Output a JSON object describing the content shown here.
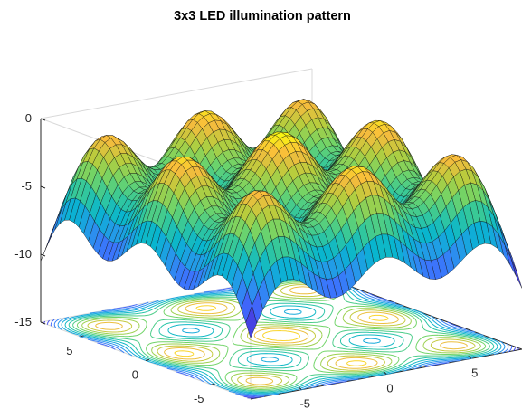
{
  "chart_data": {
    "type": "surface",
    "title": "3x3 LED illumination pattern",
    "xlabel": "",
    "ylabel": "",
    "zlabel": "",
    "x_range": [
      -8,
      8
    ],
    "y_range": [
      -8,
      8
    ],
    "zlim": [
      -15,
      0
    ],
    "contour_plane_z": -15,
    "grid": "off",
    "colormap": "parula",
    "source_grid_x": [
      -6,
      0,
      6
    ],
    "source_grid_y": [
      -6,
      0,
      6
    ],
    "peak_value": 0,
    "corner_value": -10.5,
    "min_value": -14,
    "x_ticks": [
      "-5",
      "0",
      "5"
    ],
    "y_ticks": [
      "-5",
      "0",
      "5"
    ],
    "z_ticks": [
      "0",
      "-5",
      "-10",
      "-15"
    ]
  }
}
